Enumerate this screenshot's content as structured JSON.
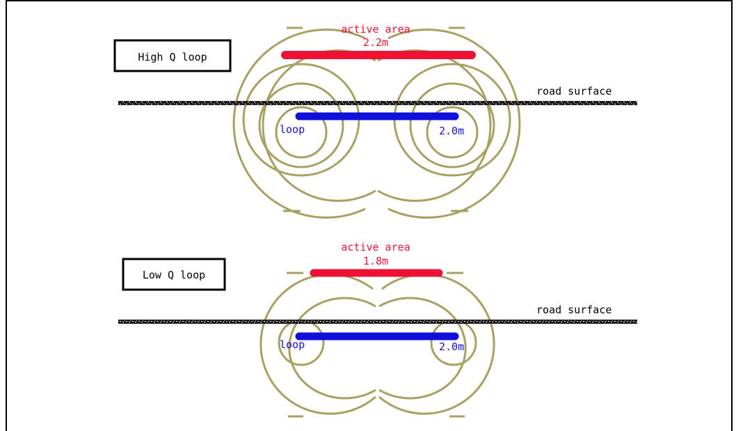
{
  "colors": {
    "active_area": "#ee1133",
    "loop": "#1010dd",
    "field_lines": "#a8a060",
    "road": "#1a1a1a",
    "frame": "#000000"
  },
  "panels": {
    "high": {
      "label": "High Q loop",
      "active_area_title": "active area",
      "active_area_value": "2.2m",
      "road_label": "road surface",
      "loop_label": "loop",
      "loop_length": "2.0m"
    },
    "low": {
      "label": "Low Q loop",
      "active_area_title": "active area",
      "active_area_value": "1.8m",
      "road_label": "road surface",
      "loop_label": "loop",
      "loop_length": "2.0m"
    }
  }
}
